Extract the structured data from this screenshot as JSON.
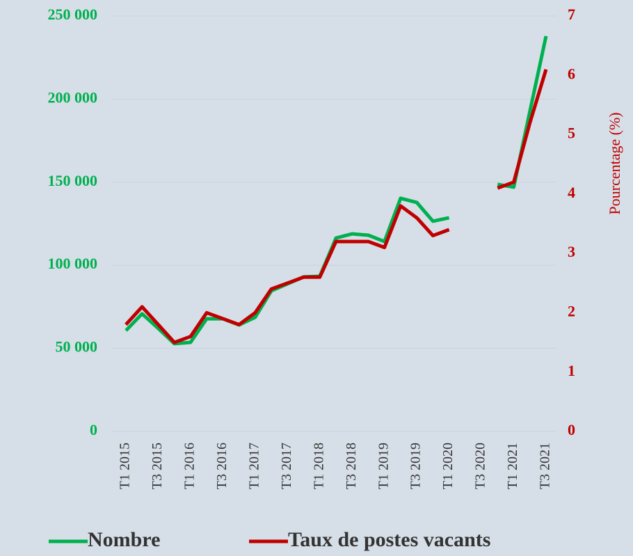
{
  "chart_data": {
    "type": "line",
    "categories": [
      "T1 2015",
      null,
      "T3 2015",
      null,
      "T1 2016",
      null,
      "T3 2016",
      null,
      "T1 2017",
      null,
      "T3 2017",
      null,
      "T1 2018",
      null,
      "T3 2018",
      null,
      "T1 2019",
      null,
      "T3 2019",
      null,
      "T1 2020",
      null,
      "T3 2020",
      null,
      "T1 2021",
      null,
      "T3 2021"
    ],
    "series": [
      {
        "name": "Nombre",
        "color": "#00b050",
        "axis": "y",
        "values": [
          60700,
          70800,
          62000,
          52800,
          53600,
          67800,
          67800,
          64100,
          68700,
          84600,
          88800,
          93000,
          93400,
          116400,
          118900,
          118100,
          114300,
          140300,
          137800,
          126500,
          128600,
          null,
          null,
          148700,
          147000,
          192600,
          237900
        ]
      },
      {
        "name": "Taux de postes vacants",
        "color": "#c00000",
        "axis": "y2",
        "values": [
          1.8,
          2.1,
          1.8,
          1.5,
          1.6,
          2.0,
          1.9,
          1.8,
          2.0,
          2.4,
          2.5,
          2.6,
          2.6,
          3.2,
          3.2,
          3.2,
          3.1,
          3.8,
          3.6,
          3.3,
          3.4,
          null,
          null,
          4.1,
          4.2,
          5.2,
          6.1
        ]
      }
    ],
    "ylim": [
      0,
      250000
    ],
    "yticks": [
      0,
      {
        "value": 50000,
        "label": "50 000"
      },
      {
        "value": 100000,
        "label": "100 000"
      },
      {
        "value": 150000,
        "label": "150 000"
      },
      {
        "value": 200000,
        "label": "200 000"
      },
      {
        "value": 250000,
        "label": "250 000"
      }
    ],
    "y2lim": [
      0,
      7
    ],
    "y2ticks": [
      0,
      1,
      2,
      3,
      4,
      5,
      6,
      7
    ],
    "y2label": "Pourcentage (%)",
    "grid": true,
    "legend": "bottom"
  }
}
